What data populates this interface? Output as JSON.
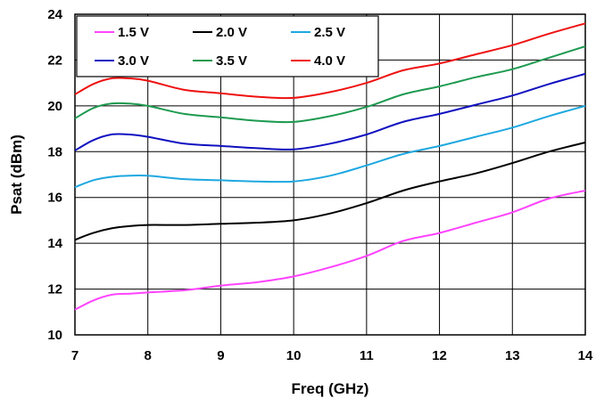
{
  "chart_data": {
    "type": "line",
    "title": "",
    "xlabel": "Freq (GHz)",
    "ylabel": "Psat (dBm)",
    "xlim": [
      7,
      14
    ],
    "ylim": [
      10,
      24
    ],
    "xticks": [
      "7",
      "8",
      "9",
      "10",
      "11",
      "12",
      "13",
      "14"
    ],
    "yticks": [
      "10",
      "12",
      "14",
      "16",
      "18",
      "20",
      "22",
      "24"
    ],
    "grid": true,
    "legend": "top-left",
    "x": [
      7,
      7.25,
      7.5,
      7.75,
      8,
      8.5,
      9,
      9.5,
      10,
      10.5,
      11,
      11.5,
      12,
      12.5,
      13,
      13.5,
      14
    ],
    "series": [
      {
        "name": "1.5 V",
        "color": "#ff44ff",
        "values": [
          11.1,
          11.5,
          11.75,
          11.8,
          11.85,
          11.95,
          12.15,
          12.3,
          12.55,
          12.95,
          13.45,
          14.1,
          14.45,
          14.9,
          15.35,
          15.95,
          16.3
        ]
      },
      {
        "name": "2.0 V",
        "color": "#000000",
        "values": [
          14.15,
          14.45,
          14.65,
          14.75,
          14.8,
          14.8,
          14.85,
          14.9,
          15.0,
          15.3,
          15.75,
          16.3,
          16.7,
          17.05,
          17.5,
          18.0,
          18.4
        ]
      },
      {
        "name": "2.5 V",
        "color": "#1ea8e0",
        "values": [
          16.45,
          16.75,
          16.9,
          16.95,
          16.95,
          16.8,
          16.75,
          16.7,
          16.7,
          16.95,
          17.4,
          17.9,
          18.25,
          18.65,
          19.05,
          19.55,
          20.0
        ]
      },
      {
        "name": "3.0 V",
        "color": "#1010c0",
        "values": [
          18.05,
          18.5,
          18.75,
          18.75,
          18.65,
          18.35,
          18.25,
          18.15,
          18.1,
          18.35,
          18.75,
          19.3,
          19.65,
          20.05,
          20.45,
          20.95,
          21.4
        ]
      },
      {
        "name": "3.5 V",
        "color": "#1e9a50",
        "values": [
          19.45,
          19.9,
          20.1,
          20.1,
          20.0,
          19.65,
          19.5,
          19.35,
          19.3,
          19.55,
          19.95,
          20.5,
          20.85,
          21.25,
          21.6,
          22.1,
          22.6
        ]
      },
      {
        "name": "4.0 V",
        "color": "#ee1111",
        "values": [
          20.5,
          20.95,
          21.2,
          21.2,
          21.1,
          20.7,
          20.55,
          20.4,
          20.35,
          20.6,
          21.0,
          21.55,
          21.85,
          22.25,
          22.65,
          23.15,
          23.6
        ]
      }
    ]
  }
}
